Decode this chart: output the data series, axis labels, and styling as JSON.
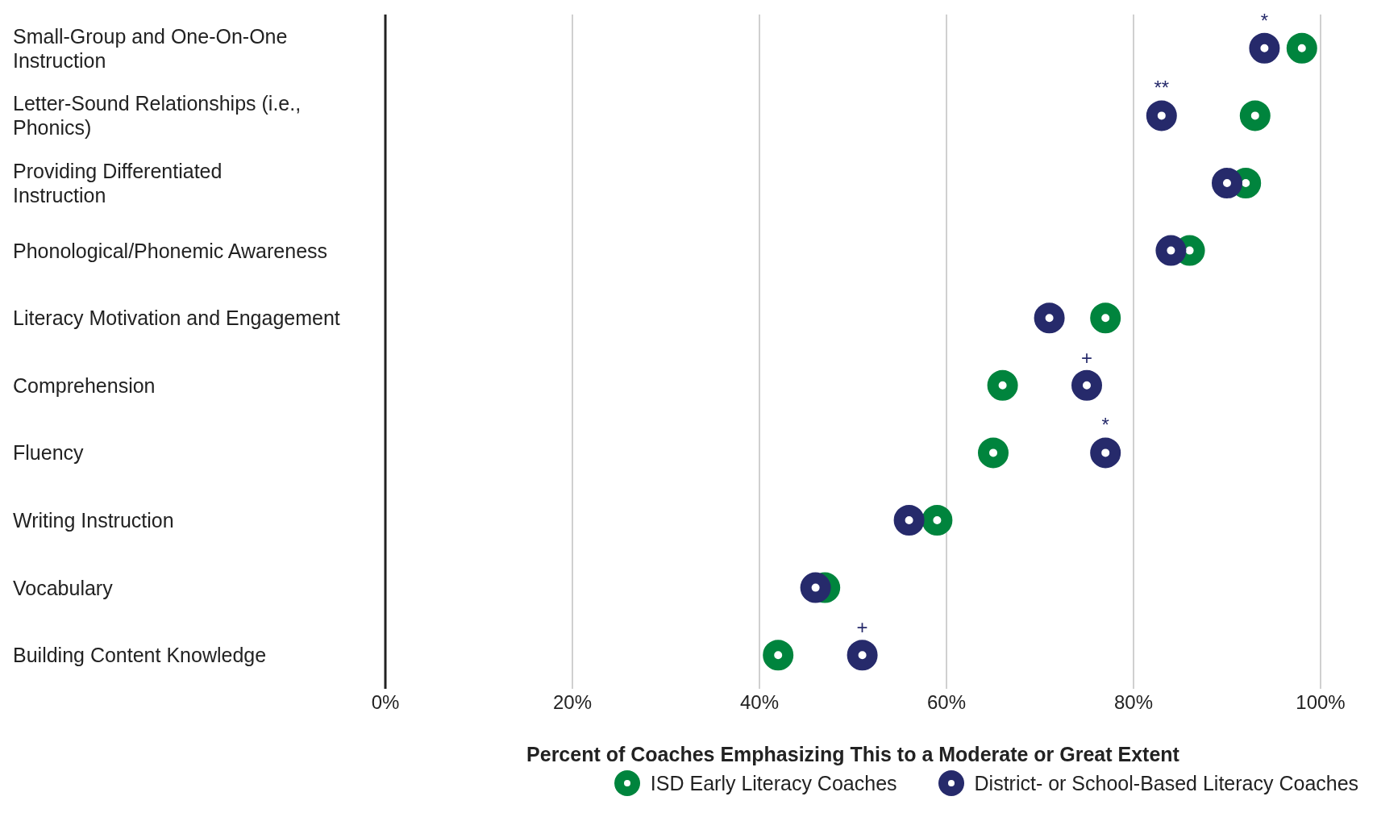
{
  "chart_data": {
    "type": "scatter",
    "categories": [
      "Small-Group and One-On-One Instruction",
      "Letter-Sound Relationships (i.e., Phonics)",
      "Providing Differentiated Instruction",
      "Phonological/Phonemic Awareness",
      "Literacy Motivation and Engagement",
      "Comprehension",
      "Fluency",
      "Writing Instruction",
      "Vocabulary",
      "Building Content Knowledge"
    ],
    "series": [
      {
        "name": "ISD Early Literacy Coaches",
        "color": "#00843d",
        "values": [
          98,
          93,
          92,
          86,
          77,
          66,
          65,
          59,
          47,
          42
        ]
      },
      {
        "name": "District- or School-Based Literacy Coaches",
        "color": "#262a6b",
        "values": [
          94,
          83,
          90,
          84,
          71,
          75,
          77,
          56,
          46,
          51
        ]
      }
    ],
    "orientation": "horizontal",
    "xlabel": "Percent of Coaches Emphasizing This to a Moderate or Great Extent",
    "xlim": [
      0,
      100
    ],
    "xticks": [
      {
        "value": 0,
        "label": "0%"
      },
      {
        "value": 20,
        "label": "20%"
      },
      {
        "value": 40,
        "label": "40%"
      },
      {
        "value": 60,
        "label": "60%"
      },
      {
        "value": 80,
        "label": "80%"
      },
      {
        "value": 100,
        "label": "100%"
      }
    ],
    "grid": "x",
    "legend": "bottom",
    "marker": "circle",
    "annotations": [
      {
        "text": "*",
        "x": 94,
        "y": "Small-Group and One-On-One Instruction"
      },
      {
        "text": "**",
        "x": 83,
        "y": "Letter-Sound Relationships (i.e., Phonics)"
      },
      {
        "text": "+",
        "x": 75,
        "y": "Comprehension"
      },
      {
        "text": "*",
        "x": 77,
        "y": "Fluency"
      },
      {
        "text": "+",
        "x": 51,
        "y": "Building Content Knowledge"
      }
    ]
  }
}
